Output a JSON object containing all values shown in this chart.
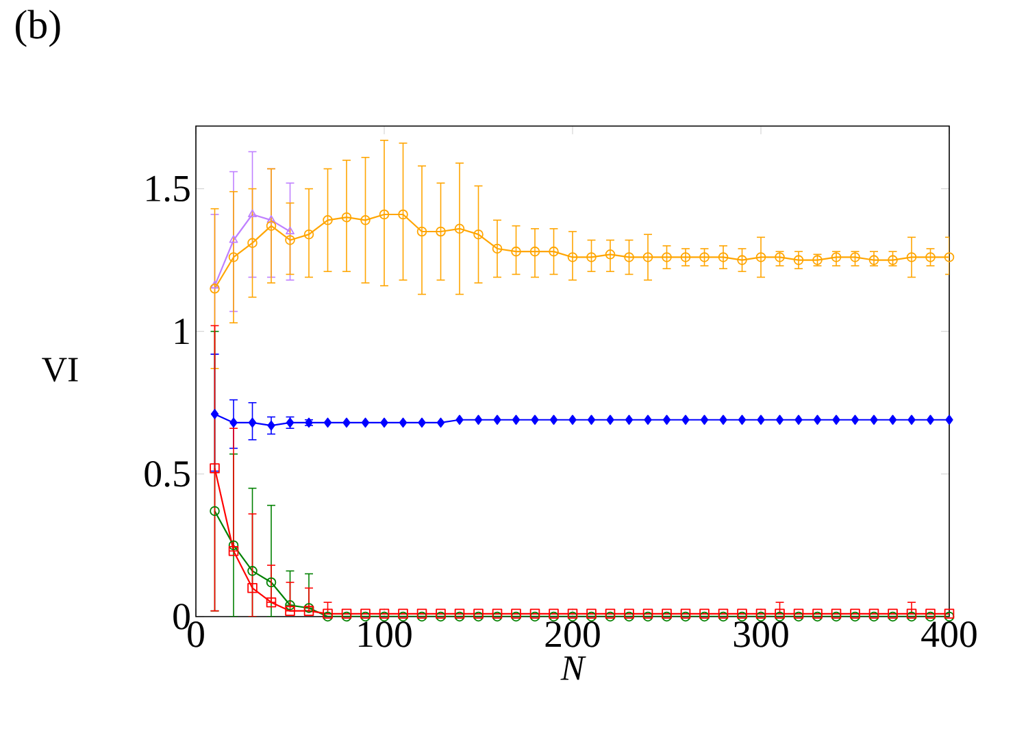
{
  "chart_data": {
    "type": "line",
    "title": "(b)",
    "xlabel": "N",
    "ylabel": "VI",
    "xlim": [
      0,
      400
    ],
    "ylim": [
      0,
      1.72
    ],
    "xticks": [
      0,
      100,
      200,
      300,
      400
    ],
    "yticks": [
      0,
      0.5,
      1,
      1.5
    ],
    "grid": false,
    "line_style": "solid",
    "x": [
      10,
      20,
      30,
      40,
      50,
      60,
      70,
      80,
      90,
      100,
      110,
      120,
      130,
      140,
      150,
      160,
      170,
      180,
      190,
      200,
      210,
      220,
      230,
      240,
      250,
      260,
      270,
      280,
      290,
      300,
      310,
      320,
      330,
      340,
      350,
      360,
      370,
      380,
      390,
      400
    ],
    "series": [
      {
        "color": "#bf80ff",
        "marker": "triangle",
        "x": [
          10,
          20,
          30,
          40,
          50
        ],
        "values": [
          1.16,
          1.32,
          1.41,
          1.39,
          1.35
        ],
        "errors": [
          [
            0.92,
            1.41
          ],
          [
            1.07,
            1.56
          ],
          [
            1.19,
            1.63
          ],
          [
            1.19,
            1.57
          ],
          [
            1.18,
            1.52
          ]
        ]
      },
      {
        "color": "#ffa500",
        "marker": "circle",
        "values": [
          1.15,
          1.26,
          1.31,
          1.37,
          1.32,
          1.34,
          1.39,
          1.4,
          1.39,
          1.41,
          1.41,
          1.35,
          1.35,
          1.36,
          1.34,
          1.29,
          1.28,
          1.28,
          1.28,
          1.26,
          1.26,
          1.27,
          1.26,
          1.26,
          1.26,
          1.26,
          1.26,
          1.26,
          1.25,
          1.26,
          1.26,
          1.25,
          1.25,
          1.26,
          1.26,
          1.25,
          1.25,
          1.26,
          1.26,
          1.26
        ],
        "errors": [
          [
            0.87,
            1.43
          ],
          [
            1.03,
            1.49
          ],
          [
            1.12,
            1.5
          ],
          [
            1.17,
            1.57
          ],
          [
            1.2,
            1.45
          ],
          [
            1.19,
            1.5
          ],
          [
            1.21,
            1.57
          ],
          [
            1.21,
            1.6
          ],
          [
            1.17,
            1.61
          ],
          [
            1.16,
            1.67
          ],
          [
            1.18,
            1.66
          ],
          [
            1.13,
            1.58
          ],
          [
            1.18,
            1.52
          ],
          [
            1.13,
            1.59
          ],
          [
            1.17,
            1.51
          ],
          [
            1.19,
            1.39
          ],
          [
            1.2,
            1.37
          ],
          [
            1.19,
            1.36
          ],
          [
            1.2,
            1.36
          ],
          [
            1.18,
            1.35
          ],
          [
            1.21,
            1.32
          ],
          [
            1.21,
            1.32
          ],
          [
            1.2,
            1.32
          ],
          [
            1.18,
            1.34
          ],
          [
            1.22,
            1.3
          ],
          [
            1.23,
            1.29
          ],
          [
            1.23,
            1.29
          ],
          [
            1.22,
            1.3
          ],
          [
            1.21,
            1.29
          ],
          [
            1.19,
            1.33
          ],
          [
            1.23,
            1.28
          ],
          [
            1.22,
            1.28
          ],
          [
            1.23,
            1.27
          ],
          [
            1.23,
            1.28
          ],
          [
            1.23,
            1.28
          ],
          [
            1.23,
            1.28
          ],
          [
            1.23,
            1.28
          ],
          [
            1.19,
            1.33
          ],
          [
            1.23,
            1.29
          ],
          [
            1.2,
            1.33
          ]
        ]
      },
      {
        "color": "#0000ff",
        "marker": "diamond",
        "values": [
          0.71,
          0.68,
          0.68,
          0.67,
          0.68,
          0.68,
          0.68,
          0.68,
          0.68,
          0.68,
          0.68,
          0.68,
          0.68,
          0.69,
          0.69,
          0.69,
          0.69,
          0.69,
          0.69,
          0.69,
          0.69,
          0.69,
          0.69,
          0.69,
          0.69,
          0.69,
          0.69,
          0.69,
          0.69,
          0.69,
          0.69,
          0.69,
          0.69,
          0.69,
          0.69,
          0.69,
          0.69,
          0.69,
          0.69,
          0.69
        ],
        "errors": [
          [
            0.51,
            0.92
          ],
          [
            0.59,
            0.76
          ],
          [
            0.62,
            0.75
          ],
          [
            0.64,
            0.7
          ],
          [
            0.66,
            0.7
          ],
          [
            0.67,
            0.69
          ],
          null,
          null,
          null,
          null,
          null,
          null,
          null,
          null,
          null,
          null,
          null,
          null,
          null,
          null,
          null,
          null,
          null,
          null,
          null,
          null,
          null,
          null,
          null,
          null,
          null,
          null,
          null,
          null,
          null,
          null,
          null,
          null,
          null,
          null
        ]
      },
      {
        "color": "#008000",
        "marker": "circle",
        "values": [
          0.37,
          0.25,
          0.16,
          0.12,
          0.04,
          0.03,
          0,
          0,
          0,
          0,
          0,
          0,
          0,
          0,
          0,
          0,
          0,
          0,
          0,
          0,
          0,
          0,
          0,
          0,
          0,
          0,
          0,
          0,
          0,
          0,
          0,
          0,
          0,
          0,
          0,
          0,
          0,
          0,
          0,
          0
        ],
        "errors": [
          [
            0.02,
            1.0
          ],
          [
            0,
            0.57
          ],
          [
            0,
            0.45
          ],
          [
            0,
            0.39
          ],
          [
            0.04,
            0.16
          ],
          [
            0.03,
            0.15
          ],
          null,
          null,
          null,
          null,
          null,
          null,
          null,
          null,
          null,
          null,
          null,
          null,
          null,
          null,
          null,
          null,
          null,
          null,
          null,
          null,
          null,
          null,
          null,
          null,
          null,
          null,
          null,
          null,
          null,
          null,
          null,
          null,
          null,
          null
        ]
      },
      {
        "color": "#ff0000",
        "marker": "square",
        "values": [
          0.52,
          0.23,
          0.1,
          0.05,
          0.02,
          0.02,
          0.01,
          0.01,
          0.01,
          0.01,
          0.01,
          0.01,
          0.01,
          0.01,
          0.01,
          0.01,
          0.01,
          0.01,
          0.01,
          0.01,
          0.01,
          0.01,
          0.01,
          0.01,
          0.01,
          0.01,
          0.01,
          0.01,
          0.01,
          0.01,
          0.01,
          0.01,
          0.01,
          0.01,
          0.01,
          0.01,
          0.01,
          0.01,
          0.01,
          0.01
        ],
        "errors": [
          [
            0.02,
            1.02
          ],
          [
            0.23,
            0.66
          ],
          [
            0,
            0.36
          ],
          [
            0.05,
            0.18
          ],
          [
            0.02,
            0.12
          ],
          [
            0.02,
            0.1
          ],
          [
            0.01,
            0.05
          ],
          null,
          null,
          null,
          null,
          null,
          null,
          null,
          null,
          null,
          null,
          null,
          null,
          null,
          null,
          null,
          null,
          null,
          null,
          null,
          null,
          null,
          null,
          null,
          [
            0.01,
            0.05
          ],
          null,
          null,
          null,
          null,
          null,
          null,
          [
            0.01,
            0.05
          ],
          null,
          null
        ]
      }
    ]
  }
}
